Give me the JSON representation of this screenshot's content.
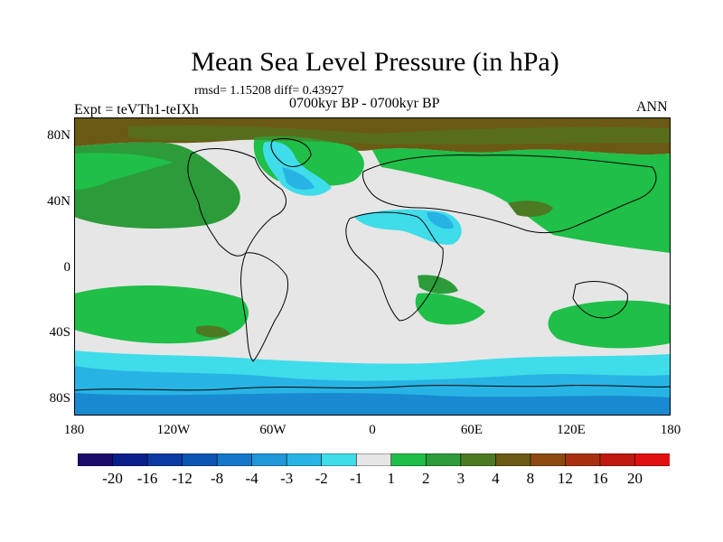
{
  "title": "Mean Sea Level Pressure (in hPa)",
  "stats": "rmsd= 1.15208 diff= 0.43927",
  "period": "0700kyr BP - 0700kyr BP",
  "expt": "Expt = teVTh1-teIXh",
  "season": "ANN",
  "axes": {
    "y_ticks": [
      "80N",
      "40N",
      "0",
      "40S",
      "80S"
    ],
    "y_values": [
      80,
      40,
      0,
      -40,
      -80
    ],
    "x_ticks": [
      "180",
      "120W",
      "60W",
      "0",
      "60E",
      "120E",
      "180"
    ],
    "x_values": [
      -180,
      -120,
      -60,
      0,
      60,
      120,
      180
    ]
  },
  "colorbar": {
    "labels": [
      "-20",
      "-16",
      "-12",
      "-8",
      "-4",
      "-3",
      "-2",
      "-1",
      "1",
      "2",
      "3",
      "4",
      "8",
      "12",
      "16",
      "20"
    ],
    "colors": [
      "#1a0a6b",
      "#0b1f8c",
      "#0a3ba3",
      "#0b55b3",
      "#1477c9",
      "#1f97d8",
      "#27b4e4",
      "#3fdcea",
      "#e6e6e6",
      "#1fbf48",
      "#2c9c3a",
      "#4c7a22",
      "#6a5a14",
      "#8a4a10",
      "#a83010",
      "#c01a10",
      "#e01010"
    ]
  },
  "colors": {
    "neutral": "#e6e6e6",
    "pos_light": "#1fbf48",
    "pos_mid": "#2c9c3a",
    "pos_dark": "#4c7a22",
    "pos_brown": "#6a5a14",
    "neg_light": "#3fdcea",
    "neg_mid": "#27b4e4",
    "neg_dark": "#1f97d8",
    "neg_deep": "#1477c9"
  }
}
